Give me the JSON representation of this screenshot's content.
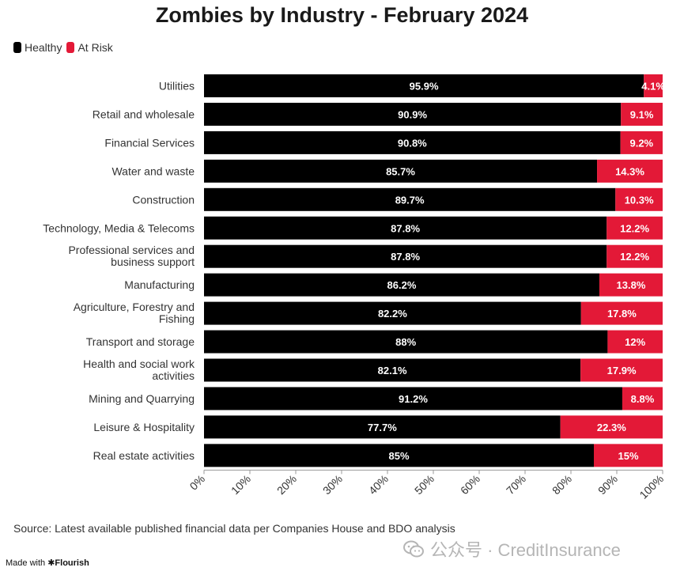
{
  "chart_data": {
    "type": "bar",
    "stacked": true,
    "orientation": "horizontal",
    "title": "Zombies by Industry - February 2024",
    "categories": [
      "Utilities",
      "Retail and wholesale",
      "Financial Services",
      "Water and waste",
      "Construction",
      "Technology, Media & Telecoms",
      "Professional services and business support",
      "Manufacturing",
      "Agriculture, Forestry and Fishing",
      "Transport and storage",
      "Health and social work activities",
      "Mining and Quarrying",
      "Leisure & Hospitality",
      "Real estate activities"
    ],
    "series": [
      {
        "name": "Healthy",
        "color": "#000000",
        "values": [
          95.9,
          90.9,
          90.8,
          85.7,
          89.7,
          87.8,
          87.8,
          86.2,
          82.2,
          88,
          82.1,
          91.2,
          77.7,
          85
        ],
        "labels": [
          "95.9%",
          "90.9%",
          "90.8%",
          "85.7%",
          "89.7%",
          "87.8%",
          "87.8%",
          "86.2%",
          "82.2%",
          "88%",
          "82.1%",
          "91.2%",
          "77.7%",
          "85%"
        ]
      },
      {
        "name": "At Risk",
        "color": "#e31937",
        "values": [
          4.1,
          9.1,
          9.2,
          14.3,
          10.3,
          12.2,
          12.2,
          13.8,
          17.8,
          12,
          17.9,
          8.8,
          22.3,
          15
        ],
        "labels": [
          "4.1%",
          "9.1%",
          "9.2%",
          "14.3%",
          "10.3%",
          "12.2%",
          "12.2%",
          "13.8%",
          "17.8%",
          "12%",
          "17.9%",
          "8.8%",
          "22.3%",
          "15%"
        ]
      }
    ],
    "xlim": [
      0,
      100
    ],
    "x_ticks": [
      "0%",
      "10%",
      "20%",
      "30%",
      "40%",
      "50%",
      "60%",
      "70%",
      "80%",
      "90%",
      "100%"
    ],
    "legend_position": "top-left",
    "grid": false
  },
  "source": "Source: Latest available published financial data per Companies House and BDO analysis",
  "credit": {
    "prefix": "Made with",
    "brand": "Flourish"
  },
  "watermark": {
    "text": "公众号 · CreditInsurance",
    "icon": "wechat-icon"
  }
}
